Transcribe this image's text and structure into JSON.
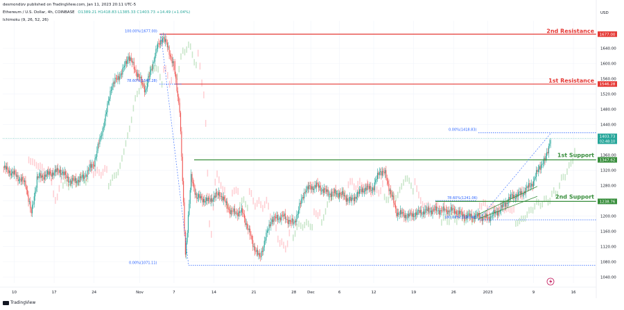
{
  "header": {
    "publisher": "desmondizv published on TradingView.com, Jan 11, 2023 20:11 UTC-5",
    "symbol": "Ethereum / U.S. Dollar, 4h, COINBASE",
    "ohlc": "O1389.21  H1418.83  L1385.33  C1403.73  +14.49 (+1.04%)",
    "indicator": "Ichimoku (9, 26, 52, 26)",
    "currency": "USD"
  },
  "footer": {
    "brand": "TradingView"
  },
  "chart_data": {
    "type": "line",
    "symbol": "ETHUSD",
    "timeframe": "4h",
    "y_axis": {
      "min": 1025,
      "max": 1712,
      "ticks": [
        1040,
        1080,
        1120,
        1160,
        1200,
        1240,
        1280,
        1320,
        1360,
        1400,
        1440,
        1480,
        1520,
        1560,
        1600,
        1640
      ]
    },
    "x_axis": {
      "start": "2022-10-08",
      "end": "2023-01-20",
      "ticks": [
        {
          "date": "2022-10-10",
          "label": "10"
        },
        {
          "date": "2022-10-17",
          "label": "17"
        },
        {
          "date": "2022-10-24",
          "label": "24"
        },
        {
          "date": "2022-11-01",
          "label": "Nov"
        },
        {
          "date": "2022-11-07",
          "label": "7"
        },
        {
          "date": "2022-11-14",
          "label": "14"
        },
        {
          "date": "2022-11-21",
          "label": "21"
        },
        {
          "date": "2022-11-28",
          "label": "28"
        },
        {
          "date": "2022-12-01",
          "label": "Dec"
        },
        {
          "date": "2022-12-06",
          "label": "6"
        },
        {
          "date": "2022-12-12",
          "label": "12"
        },
        {
          "date": "2022-12-19",
          "label": "19"
        },
        {
          "date": "2022-12-26",
          "label": "26"
        },
        {
          "date": "2023-01-01",
          "label": "2023"
        },
        {
          "date": "2023-01-09",
          "label": "9"
        },
        {
          "date": "2023-01-16",
          "label": "16"
        }
      ]
    },
    "price_path": [
      [
        "2022-10-08",
        1328
      ],
      [
        "2022-10-10",
        1310
      ],
      [
        "2022-10-12",
        1285
      ],
      [
        "2022-10-13",
        1205
      ],
      [
        "2022-10-14",
        1300
      ],
      [
        "2022-10-16",
        1310
      ],
      [
        "2022-10-18",
        1320
      ],
      [
        "2022-10-20",
        1290
      ],
      [
        "2022-10-22",
        1300
      ],
      [
        "2022-10-24",
        1340
      ],
      [
        "2022-10-26",
        1460
      ],
      [
        "2022-10-27",
        1540
      ],
      [
        "2022-10-29",
        1580
      ],
      [
        "2022-10-30",
        1620
      ],
      [
        "2022-11-01",
        1560
      ],
      [
        "2022-11-02",
        1530
      ],
      [
        "2022-11-04",
        1640
      ],
      [
        "2022-11-05",
        1670
      ],
      [
        "2022-11-06",
        1640
      ],
      [
        "2022-11-07",
        1590
      ],
      [
        "2022-11-08",
        1480
      ],
      [
        "2022-11-09",
        1100
      ],
      [
        "2022-11-10",
        1300
      ],
      [
        "2022-11-11",
        1250
      ],
      [
        "2022-11-13",
        1240
      ],
      [
        "2022-11-15",
        1260
      ],
      [
        "2022-11-17",
        1210
      ],
      [
        "2022-11-19",
        1210
      ],
      [
        "2022-11-21",
        1120
      ],
      [
        "2022-11-22",
        1090
      ],
      [
        "2022-11-24",
        1190
      ],
      [
        "2022-11-26",
        1200
      ],
      [
        "2022-11-28",
        1180
      ],
      [
        "2022-11-30",
        1270
      ],
      [
        "2022-12-02",
        1280
      ],
      [
        "2022-12-04",
        1260
      ],
      [
        "2022-12-06",
        1260
      ],
      [
        "2022-12-08",
        1240
      ],
      [
        "2022-12-10",
        1270
      ],
      [
        "2022-12-12",
        1275
      ],
      [
        "2022-12-13",
        1320
      ],
      [
        "2022-12-14",
        1310
      ],
      [
        "2022-12-16",
        1210
      ],
      [
        "2022-12-18",
        1200
      ],
      [
        "2022-12-20",
        1210
      ],
      [
        "2022-12-22",
        1215
      ],
      [
        "2022-12-24",
        1215
      ],
      [
        "2022-12-26",
        1215
      ],
      [
        "2022-12-28",
        1200
      ],
      [
        "2022-12-30",
        1200
      ],
      [
        "2023-01-01",
        1195
      ],
      [
        "2023-01-03",
        1215
      ],
      [
        "2023-01-05",
        1250
      ],
      [
        "2023-01-07",
        1260
      ],
      [
        "2023-01-09",
        1290
      ],
      [
        "2023-01-10",
        1330
      ],
      [
        "2023-01-11",
        1345
      ],
      [
        "2023-01-12",
        1404
      ]
    ],
    "levels": [
      {
        "label": "2nd Resistance",
        "value": 1677.0,
        "price_label": "1677.00",
        "kind": "resistance"
      },
      {
        "label": "1st Resistance",
        "value": 1546.28,
        "price_label": "1546.28",
        "kind": "resistance"
      },
      {
        "label": "1st Support",
        "value": 1347.62,
        "price_label": "1347.62",
        "kind": "support"
      },
      {
        "label": "2nd Support",
        "value": 1238.76,
        "price_label": "1238.76",
        "kind": "support"
      }
    ],
    "current_price": {
      "value": 1403.73,
      "label": "1403.73",
      "countdown": "02:48:10"
    },
    "fibonacci": [
      {
        "text": "100.00%(1677.00)",
        "value": 1677.0
      },
      {
        "text": "78.60%(1546.28)",
        "value": 1546.28
      },
      {
        "text": "0.00%(1071.11)",
        "value": 1071.11
      },
      {
        "text": "0.00%(1418.83)",
        "value": 1418.83
      },
      {
        "text": "78.60%(1241.06)",
        "value": 1241.06
      },
      {
        "text": "100.00%(1190.42)",
        "value": 1190.42
      }
    ],
    "colors": {
      "up": "#26a69a",
      "down": "#ef5350",
      "resistance": "#e53935",
      "support": "#388e3c",
      "fib": "#2962ff",
      "cloud_up": "#c8e6c9",
      "cloud_down": "#ffcdd2",
      "axis_text": "#131722",
      "price_tag": "#26a69a"
    }
  }
}
